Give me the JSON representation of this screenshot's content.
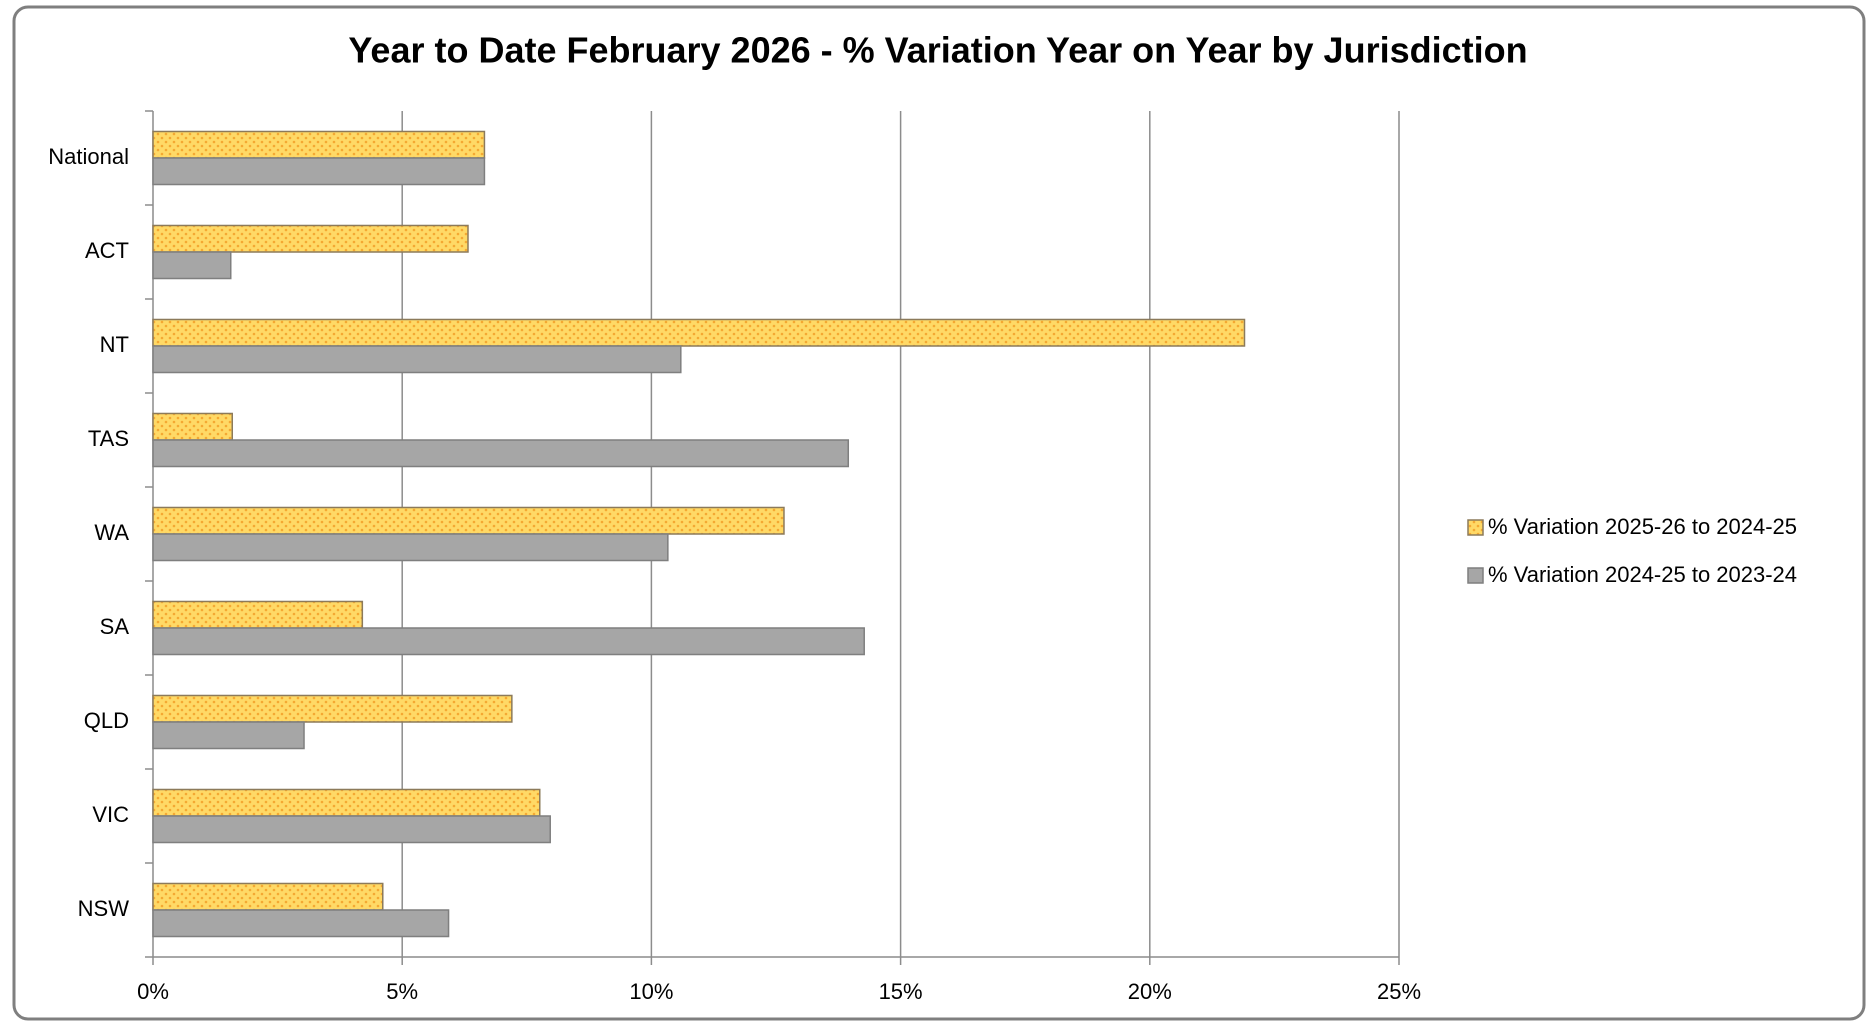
{
  "chart_data": {
    "type": "hbar",
    "title": "Year to Date February 2026 - % Variation Year on Year by Jurisdiction",
    "categories": [
      "National",
      "ACT",
      "NT",
      "TAS",
      "WA",
      "SA",
      "QLD",
      "VIC",
      "NSW"
    ],
    "series": [
      {
        "name": "% Variation 2025-26 to 2024-25",
        "color": "#ffd966",
        "values": [
          6.65,
          6.32,
          21.9,
          1.59,
          12.66,
          4.2,
          7.2,
          7.76,
          4.61
        ]
      },
      {
        "name": "% Variation 2024-25 to 2023-24",
        "color": "#a6a6a6",
        "values": [
          6.65,
          1.56,
          10.59,
          13.95,
          10.33,
          14.27,
          3.03,
          7.97,
          5.93
        ]
      }
    ],
    "xlim": [
      0,
      25
    ],
    "xticks": [
      {
        "value": 0,
        "label": "0%"
      },
      {
        "value": 5,
        "label": "5%"
      },
      {
        "value": 10,
        "label": "10%"
      },
      {
        "value": 15,
        "label": "15%"
      },
      {
        "value": 20,
        "label": "20%"
      },
      {
        "value": 25,
        "label": "25%"
      }
    ],
    "grid": true,
    "legend": "right"
  }
}
